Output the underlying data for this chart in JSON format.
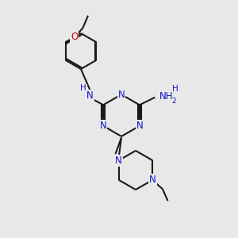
{
  "background_color": "#e8e8e8",
  "bond_color": "#1a1a1a",
  "n_color": "#1414cc",
  "o_color": "#cc0000",
  "figsize": [
    3.0,
    3.0
  ],
  "dpi": 100,
  "xlim": [
    0,
    10
  ],
  "ylim": [
    0,
    10
  ]
}
